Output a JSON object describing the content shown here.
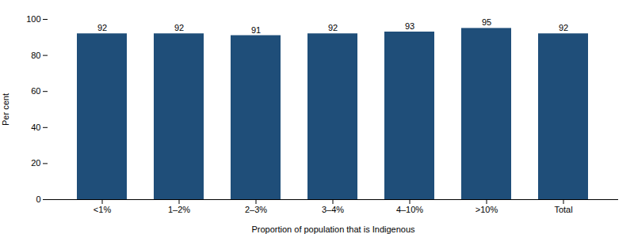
{
  "chart_data": {
    "type": "bar",
    "categories": [
      "<1%",
      "1–2%",
      "2–3%",
      "3–4%",
      "4–10%",
      ">10%",
      "Total"
    ],
    "values": [
      92,
      92,
      91,
      92,
      93,
      95,
      92
    ],
    "color": "#1F4E79",
    "xlabel": "Proportion of population that is Indigenous",
    "ylabel": "Per cent",
    "ylim": [
      0,
      100
    ],
    "yticks": [
      0,
      20,
      40,
      60,
      80,
      100
    ],
    "data_labels": true,
    "grid": false
  }
}
